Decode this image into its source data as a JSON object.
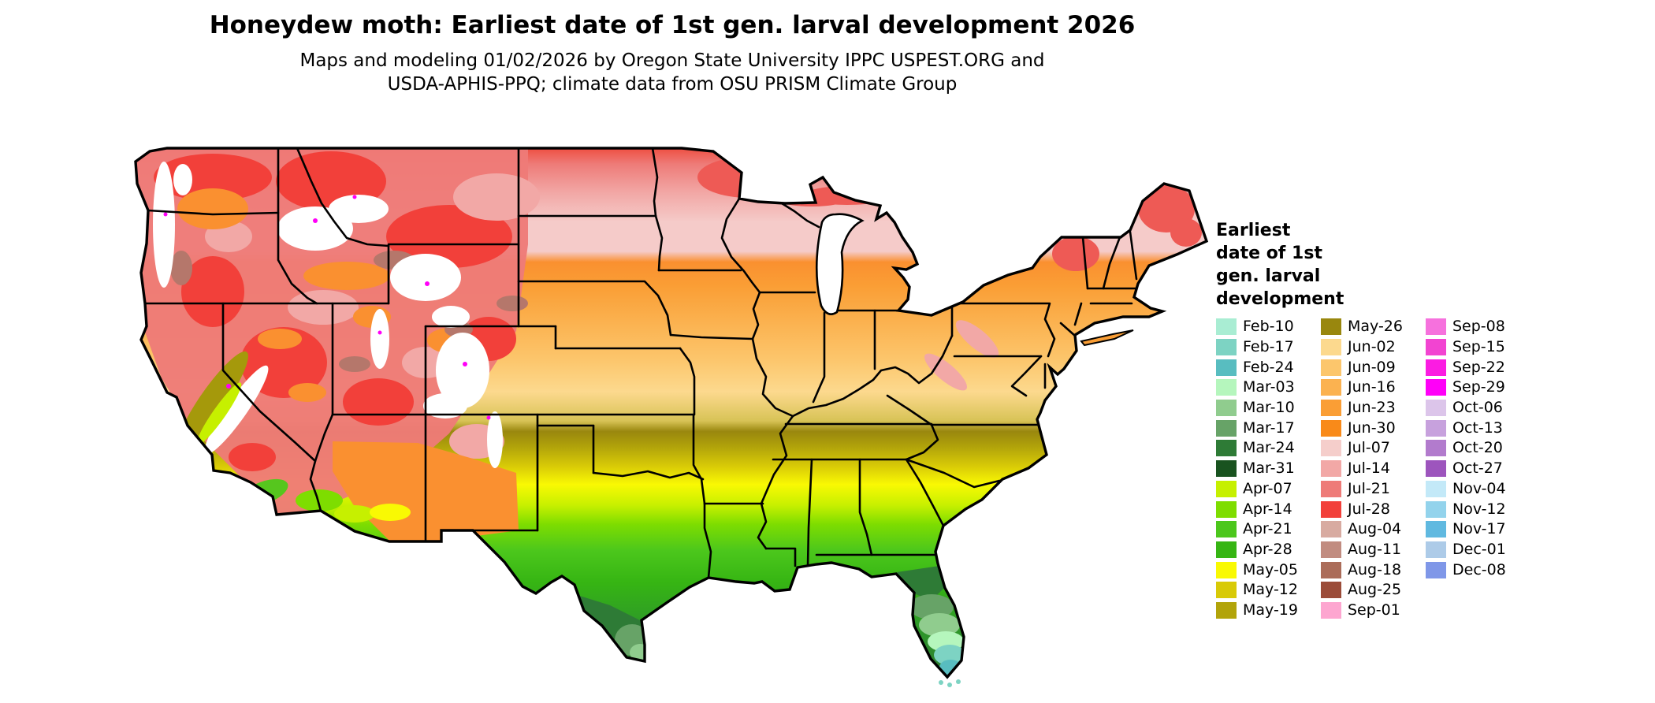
{
  "header": {
    "title": "Honeydew moth: Earliest date of 1st gen. larval development 2026",
    "subtitle_line1": "Maps and modeling 01/02/2026 by Oregon State University IPPC USPEST.ORG and",
    "subtitle_line2": "USDA-APHIS-PPQ; climate data from OSU PRISM Climate Group"
  },
  "legend": {
    "title_lines": [
      "Earliest",
      "date of 1st",
      "gen. larval",
      "development"
    ],
    "columns": [
      [
        {
          "date": "Feb-10",
          "color": "#a9edd3"
        },
        {
          "date": "Feb-17",
          "color": "#7dd3c3"
        },
        {
          "date": "Feb-24",
          "color": "#58bdc0"
        },
        {
          "date": "Mar-03",
          "color": "#b5f6bd"
        },
        {
          "date": "Mar-10",
          "color": "#90cc8e"
        },
        {
          "date": "Mar-17",
          "color": "#67a367"
        },
        {
          "date": "Mar-24",
          "color": "#2e7b36"
        },
        {
          "date": "Mar-31",
          "color": "#19531f"
        },
        {
          "date": "Apr-07",
          "color": "#c6f000"
        },
        {
          "date": "Apr-14",
          "color": "#7edd00"
        },
        {
          "date": "Apr-21",
          "color": "#4cc71c"
        },
        {
          "date": "Apr-28",
          "color": "#36b513"
        },
        {
          "date": "May-05",
          "color": "#f9f903"
        },
        {
          "date": "May-12",
          "color": "#d8ca07"
        },
        {
          "date": "May-19",
          "color": "#b2a40a"
        }
      ],
      [
        {
          "date": "May-26",
          "color": "#99870e"
        },
        {
          "date": "Jun-02",
          "color": "#fcd98e"
        },
        {
          "date": "Jun-09",
          "color": "#fcc66c"
        },
        {
          "date": "Jun-16",
          "color": "#fbb250"
        },
        {
          "date": "Jun-23",
          "color": "#fa9e35"
        },
        {
          "date": "Jun-30",
          "color": "#f98a19"
        },
        {
          "date": "Jul-07",
          "color": "#f5cecb"
        },
        {
          "date": "Jul-14",
          "color": "#f2a8a6"
        },
        {
          "date": "Jul-21",
          "color": "#ee7b78"
        },
        {
          "date": "Jul-28",
          "color": "#f2403a"
        },
        {
          "date": "Aug-04",
          "color": "#d8aba1"
        },
        {
          "date": "Aug-11",
          "color": "#c18c80"
        },
        {
          "date": "Aug-18",
          "color": "#ab6c59"
        },
        {
          "date": "Aug-25",
          "color": "#9b4c39"
        },
        {
          "date": "Sep-01",
          "color": "#fda6d0"
        }
      ],
      [
        {
          "date": "Sep-08",
          "color": "#f671dd"
        },
        {
          "date": "Sep-15",
          "color": "#f244d1"
        },
        {
          "date": "Sep-22",
          "color": "#fb1ce2"
        },
        {
          "date": "Sep-29",
          "color": "#ff00f8"
        },
        {
          "date": "Oct-06",
          "color": "#dcc5ea"
        },
        {
          "date": "Oct-13",
          "color": "#c7a1dd"
        },
        {
          "date": "Oct-20",
          "color": "#b27bcd"
        },
        {
          "date": "Oct-27",
          "color": "#9d55bd"
        },
        {
          "date": "Nov-04",
          "color": "#c3e9f8"
        },
        {
          "date": "Nov-12",
          "color": "#93d3ec"
        },
        {
          "date": "Nov-17",
          "color": "#60b9e0"
        },
        {
          "date": "Dec-01",
          "color": "#adcbe8"
        },
        {
          "date": "Dec-08",
          "color": "#7f97e8"
        }
      ]
    ]
  }
}
